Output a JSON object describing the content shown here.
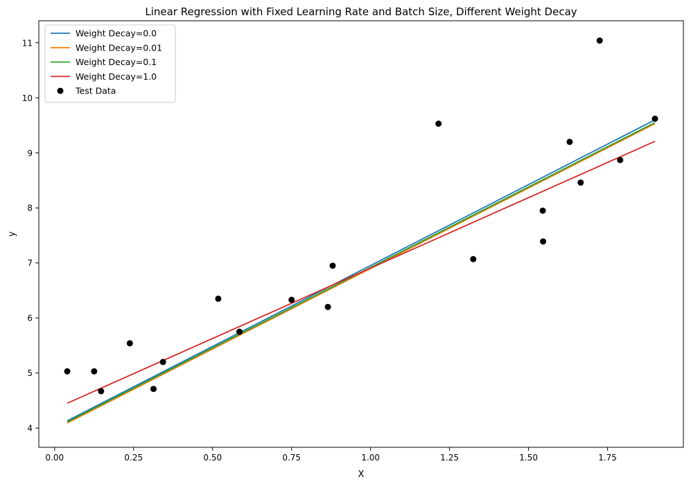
{
  "chart_data": {
    "type": "line",
    "title": "Linear Regression with Fixed Learning Rate and Batch Size, Different Weight Decay",
    "xlabel": "X",
    "ylabel": "y",
    "xlim": [
      -0.05,
      1.99
    ],
    "ylim": [
      3.65,
      11.4
    ],
    "xticks": [
      0.0,
      0.25,
      0.5,
      0.75,
      1.0,
      1.25,
      1.5,
      1.75
    ],
    "xtick_labels": [
      "0.00",
      "0.25",
      "0.50",
      "0.75",
      "1.00",
      "1.25",
      "1.50",
      "1.75"
    ],
    "yticks": [
      4,
      5,
      6,
      7,
      8,
      9,
      10,
      11
    ],
    "ytick_labels": [
      "4",
      "5",
      "6",
      "7",
      "8",
      "9",
      "10",
      "11"
    ],
    "grid": false,
    "legend_position": "top-left",
    "series": [
      {
        "name": "Weight Decay=0.0",
        "color": "#1f77b4",
        "x": [
          0.04,
          1.9
        ],
        "y": [
          4.13,
          9.6
        ]
      },
      {
        "name": "Weight Decay=0.01",
        "color": "#ff7f0e",
        "x": [
          0.04,
          1.9
        ],
        "y": [
          4.09,
          9.53
        ]
      },
      {
        "name": "Weight Decay=0.1",
        "color": "#2ca02c",
        "x": [
          0.04,
          1.9
        ],
        "y": [
          4.11,
          9.55
        ]
      },
      {
        "name": "Weight Decay=1.0",
        "color": "#d62728",
        "x": [
          0.04,
          1.9
        ],
        "y": [
          4.45,
          9.21
        ]
      }
    ],
    "scatter": {
      "name": "Test Data",
      "color": "#000000",
      "points": [
        [
          0.04,
          5.03
        ],
        [
          0.125,
          5.03
        ],
        [
          0.147,
          4.67
        ],
        [
          0.238,
          5.54
        ],
        [
          0.313,
          4.71
        ],
        [
          0.343,
          5.2
        ],
        [
          0.518,
          6.35
        ],
        [
          0.585,
          5.75
        ],
        [
          0.75,
          6.33
        ],
        [
          0.865,
          6.2
        ],
        [
          0.88,
          6.95
        ],
        [
          1.215,
          9.53
        ],
        [
          1.325,
          7.07
        ],
        [
          1.545,
          7.95
        ],
        [
          1.546,
          7.39
        ],
        [
          1.63,
          9.2
        ],
        [
          1.665,
          8.46
        ],
        [
          1.725,
          11.04
        ],
        [
          1.79,
          8.87
        ],
        [
          1.9,
          9.62
        ]
      ]
    }
  }
}
